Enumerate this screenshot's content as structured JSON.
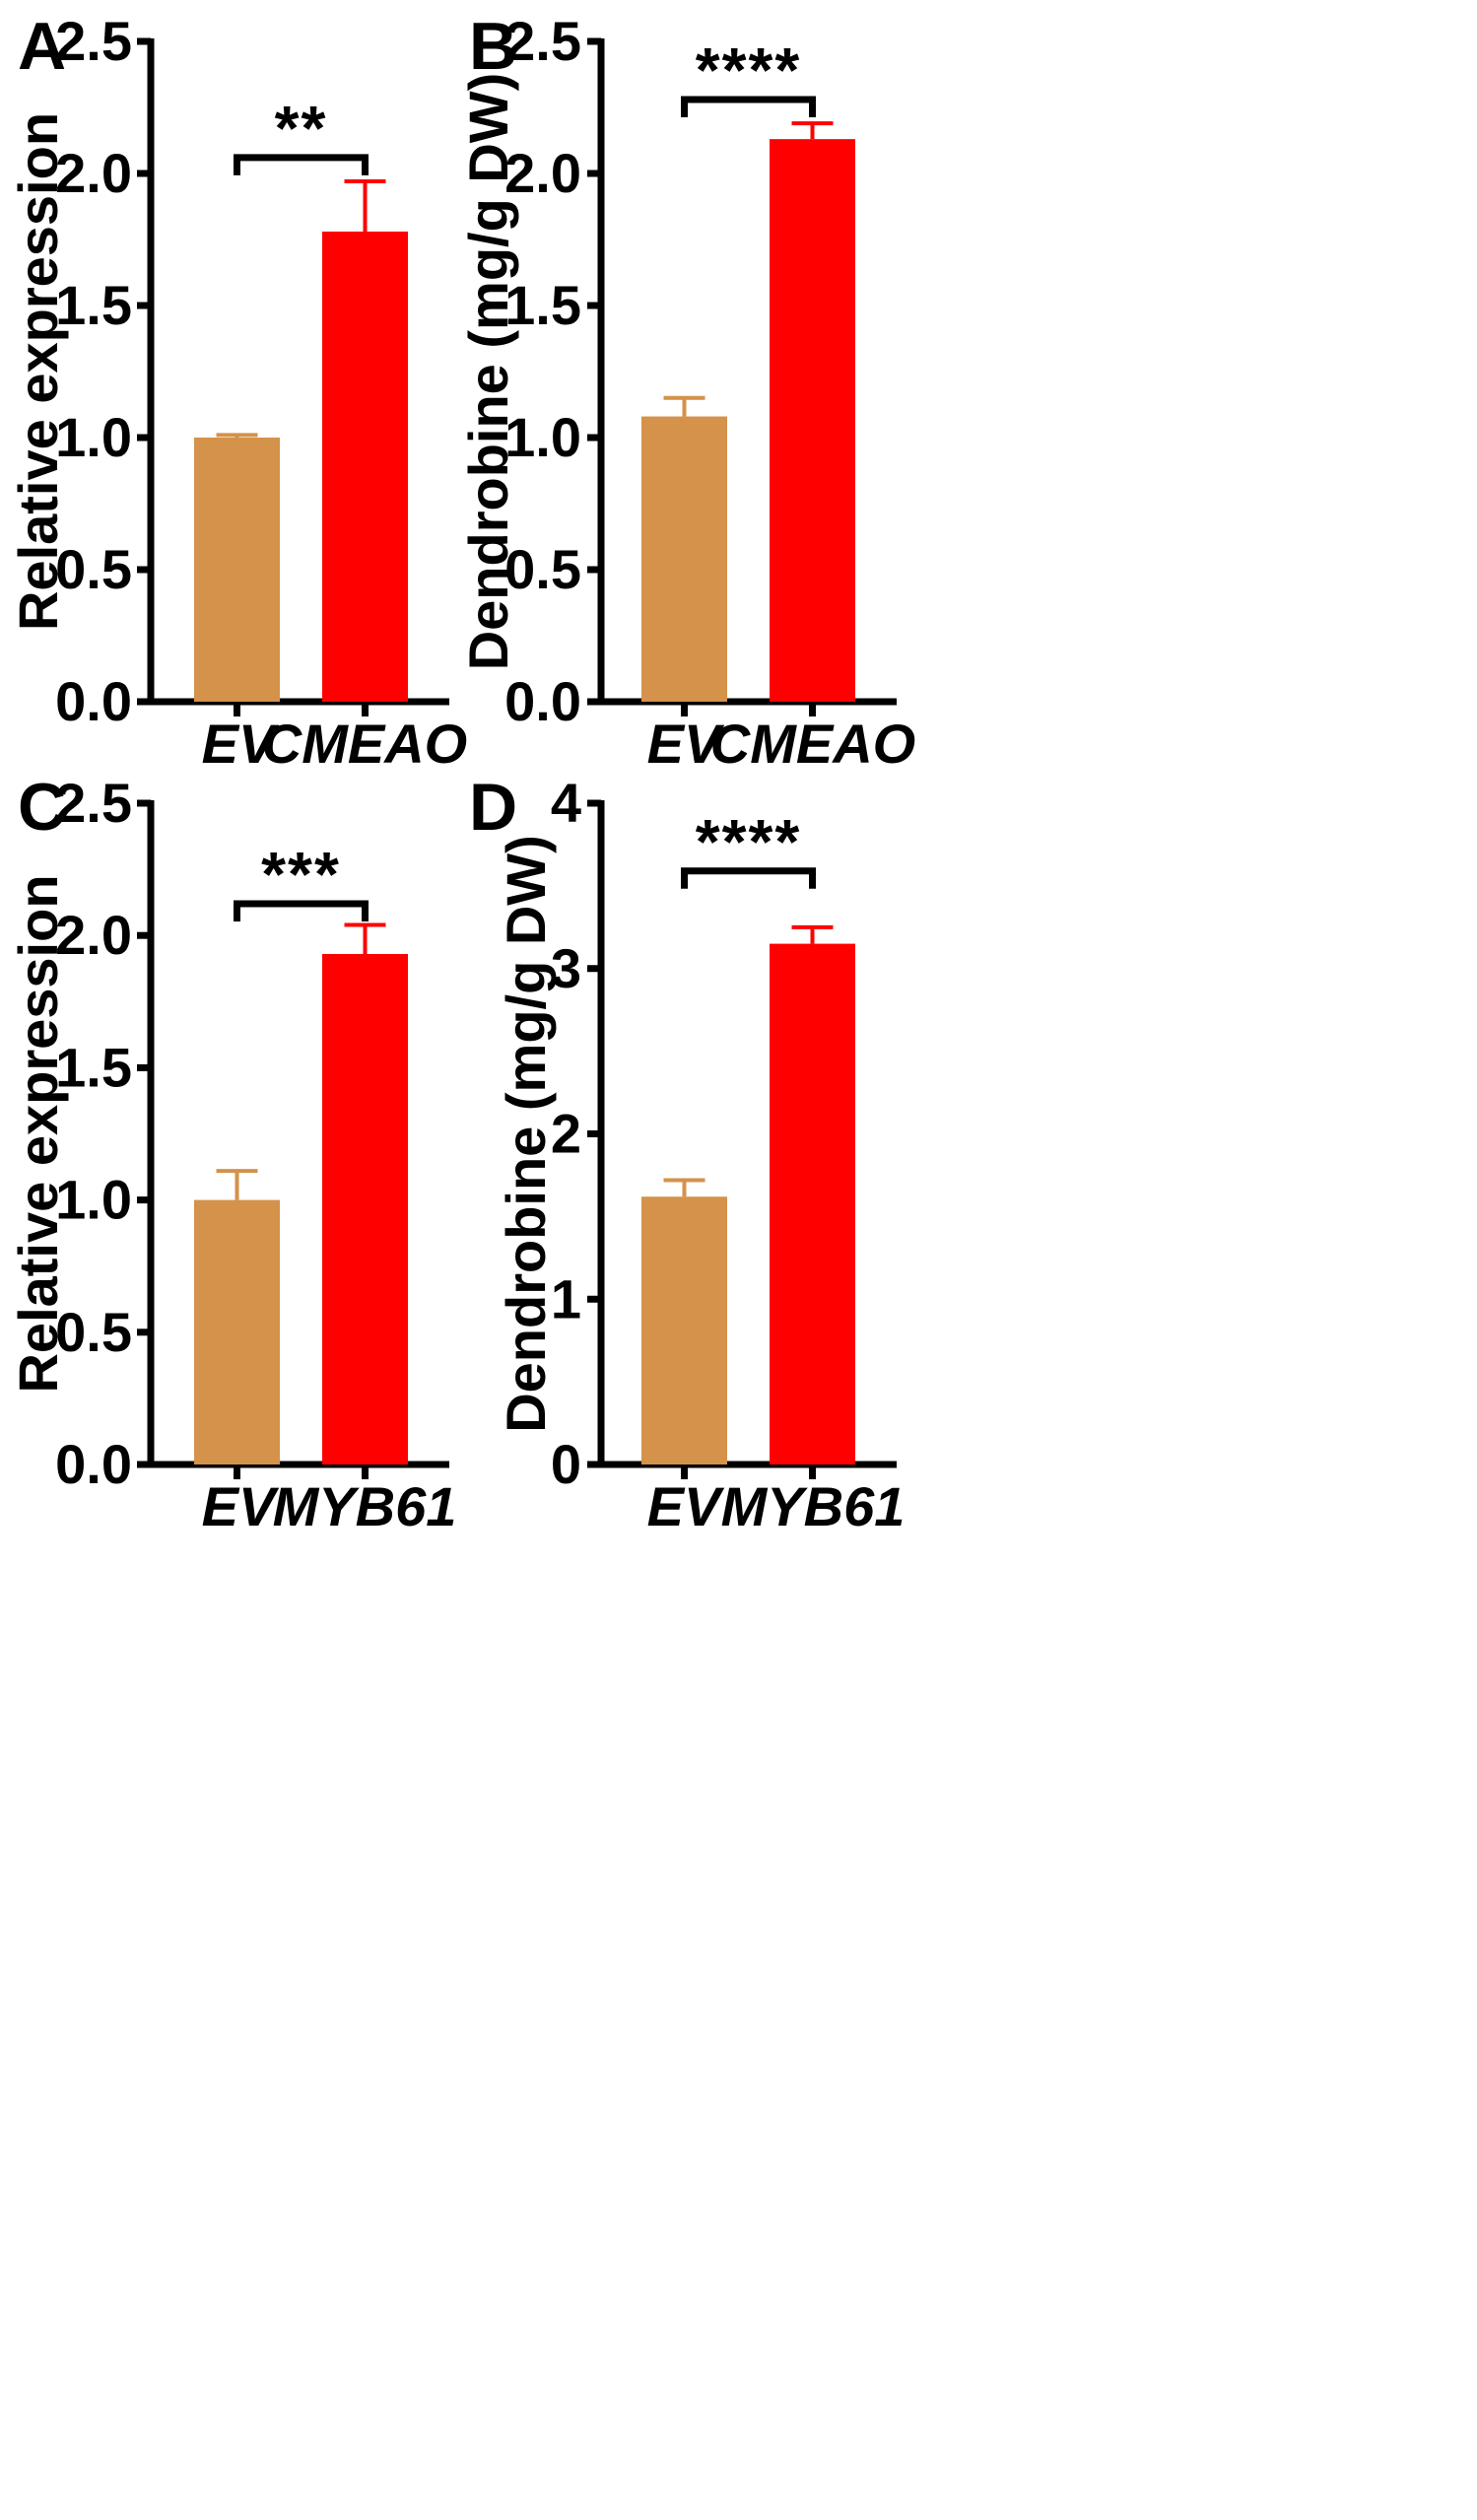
{
  "figure": {
    "colors": {
      "ev_bar": "#D4924A",
      "treatment_bar": "#FF0000",
      "axis": "#000000"
    }
  },
  "chart_data": [
    {
      "panel_label": "A",
      "type": "bar",
      "ylabel": "Relative expression",
      "ylim": [
        0,
        2.5
      ],
      "yticks": [
        "0.0",
        "0.5",
        "1.0",
        "1.5",
        "2.0",
        "2.5"
      ],
      "categories": [
        "EV",
        "CMEAO"
      ],
      "values": [
        1.0,
        1.78
      ],
      "errors": [
        0.01,
        0.19
      ],
      "significance": {
        "label": "**",
        "bracket_level": 2.06
      }
    },
    {
      "panel_label": "B",
      "type": "bar",
      "ylabel": "Dendrobine (mg/g DW)",
      "ylim": [
        0,
        2.5
      ],
      "yticks": [
        "0.0",
        "0.5",
        "1.0",
        "1.5",
        "2.0",
        "2.5"
      ],
      "categories": [
        "EV",
        "CMEAO"
      ],
      "values": [
        1.08,
        2.13
      ],
      "errors": [
        0.07,
        0.06
      ],
      "significance": {
        "label": "****",
        "bracket_level": 2.28
      }
    },
    {
      "panel_label": "C",
      "type": "bar",
      "ylabel": "Relative expression",
      "ylim": [
        0,
        2.5
      ],
      "yticks": [
        "0.0",
        "0.5",
        "1.0",
        "1.5",
        "2.0",
        "2.5"
      ],
      "categories": [
        "EV",
        "MYB61"
      ],
      "values": [
        1.0,
        1.93
      ],
      "errors": [
        0.11,
        0.11
      ],
      "significance": {
        "label": "***",
        "bracket_level": 2.12
      }
    },
    {
      "panel_label": "D",
      "type": "bar",
      "ylabel": "Dendrobine (mg/g DW)",
      "ylim": [
        0,
        4
      ],
      "yticks": [
        "0",
        "1",
        "2",
        "3",
        "4"
      ],
      "categories": [
        "EV",
        "MYB61"
      ],
      "values": [
        1.62,
        3.15
      ],
      "errors": [
        0.1,
        0.1
      ],
      "significance": {
        "label": "****",
        "bracket_level": 3.59
      }
    }
  ]
}
